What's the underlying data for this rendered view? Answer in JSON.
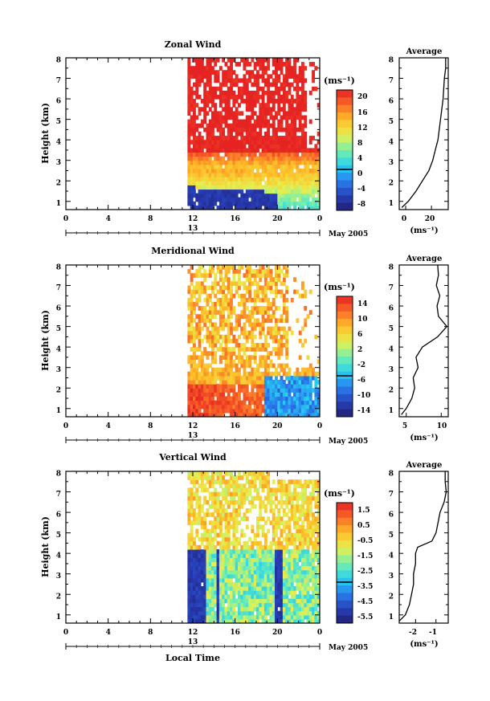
{
  "figure": {
    "xaxis_title": "Local Time",
    "average_title": "Average",
    "unit_label": "(ms⁻¹)",
    "date_label": "May 2005",
    "day_label": "13"
  },
  "chart_data": [
    {
      "type": "heatmap",
      "title": "Zonal Wind",
      "ylabel": "Height (km)",
      "xlabel": "Local Time",
      "unit": "(ms⁻¹)",
      "x_ticks": [
        "0",
        "4",
        "8",
        "12",
        "16",
        "20",
        "0"
      ],
      "y_ticks": [
        "1",
        "2",
        "3",
        "4",
        "5",
        "6",
        "7",
        "8"
      ],
      "xlim": [
        0,
        24
      ],
      "ylim": [
        0.6,
        8.0
      ],
      "data_time_range": [
        11.5,
        24.0
      ],
      "colorbar": {
        "ticks": [
          "20",
          "16",
          "12",
          "8",
          "4",
          "0",
          "-4",
          "-8"
        ],
        "range": [
          -10,
          22
        ]
      },
      "profile": {
        "title": "Average",
        "xlabel": "(ms⁻¹)",
        "x_ticks": [
          "0",
          "20"
        ],
        "xlim": [
          -5,
          33
        ],
        "heights": [
          0.7,
          1.0,
          1.5,
          2.0,
          2.5,
          3.0,
          3.5,
          4.0,
          4.5,
          5.0,
          5.5,
          6.0,
          6.5,
          7.0,
          7.5,
          8.0
        ],
        "values": [
          -3,
          2,
          8,
          13,
          18,
          21,
          23,
          25,
          26,
          27,
          28,
          29,
          29.5,
          30,
          31,
          31
        ]
      }
    },
    {
      "type": "heatmap",
      "title": "Meridional Wind",
      "ylabel": "Height (km)",
      "xlabel": "Local Time",
      "unit": "(ms⁻¹)",
      "x_ticks": [
        "0",
        "4",
        "8",
        "12",
        "16",
        "20",
        "0"
      ],
      "y_ticks": [
        "1",
        "2",
        "3",
        "4",
        "5",
        "6",
        "7",
        "8"
      ],
      "xlim": [
        0,
        24
      ],
      "ylim": [
        0.6,
        8.0
      ],
      "data_time_range": [
        11.5,
        24.0
      ],
      "colorbar": {
        "ticks": [
          "14",
          "10",
          "6",
          "2",
          "-2",
          "-6",
          "-10",
          "-14"
        ],
        "range": [
          -16,
          16
        ]
      },
      "profile": {
        "title": "Average",
        "xlabel": "(ms⁻¹)",
        "x_ticks": [
          "5",
          "10"
        ],
        "xlim": [
          4,
          11
        ],
        "heights": [
          0.7,
          1.0,
          1.5,
          2.0,
          2.5,
          3.0,
          3.5,
          4.0,
          4.5,
          5.0,
          5.5,
          6.0,
          6.5,
          7.0,
          7.5,
          8.0
        ],
        "values": [
          4.3,
          5.0,
          5.8,
          6.2,
          6.0,
          6.7,
          6.4,
          7.3,
          9.5,
          10.8,
          9.6,
          9.4,
          9.8,
          9.3,
          9.6,
          9.5
        ]
      }
    },
    {
      "type": "heatmap",
      "title": "Vertical Wind",
      "ylabel": "Height (km)",
      "xlabel": "Local Time",
      "unit": "(ms⁻¹)",
      "x_ticks": [
        "0",
        "4",
        "8",
        "12",
        "16",
        "20",
        "0"
      ],
      "y_ticks": [
        "1",
        "2",
        "3",
        "4",
        "5",
        "6",
        "7",
        "8"
      ],
      "xlim": [
        0,
        24
      ],
      "ylim": [
        0.6,
        8.0
      ],
      "data_time_range": [
        11.5,
        24.0
      ],
      "colorbar": {
        "ticks": [
          "1.5",
          "0.5",
          "-0.5",
          "-1.5",
          "-2.5",
          "-3.5",
          "-4.5",
          "-5.5"
        ],
        "range": [
          -6,
          2
        ]
      },
      "profile": {
        "title": "Average",
        "xlabel": "(ms⁻¹)",
        "x_ticks": [
          "-2",
          "-1"
        ],
        "xlim": [
          -2.8,
          -0.4
        ],
        "heights": [
          0.7,
          1.0,
          1.5,
          2.0,
          2.5,
          3.0,
          3.5,
          4.0,
          4.3,
          4.6,
          5.0,
          5.5,
          6.0,
          6.5,
          7.0,
          7.5,
          8.0
        ],
        "values": [
          -2.8,
          -2.5,
          -2.3,
          -2.2,
          -2.1,
          -2.1,
          -2.0,
          -2.0,
          -1.9,
          -1.2,
          -1.0,
          -0.9,
          -0.8,
          -0.6,
          -0.5,
          -0.55,
          -0.55
        ]
      }
    }
  ]
}
